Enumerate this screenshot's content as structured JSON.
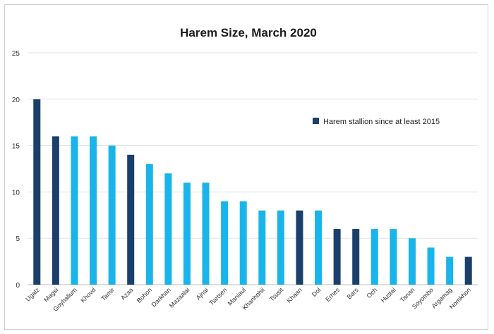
{
  "chart_data": {
    "type": "bar",
    "title": "Harem Size, March 2020",
    "xlabel": "",
    "ylabel": "",
    "ylim": [
      0,
      25
    ],
    "yticks": [
      0,
      5,
      10,
      15,
      20,
      25
    ],
    "grid": true,
    "legend_position": "right",
    "legend": [
      {
        "label": "Harem stallion since at least  2015",
        "color": "#1b3f6b"
      }
    ],
    "colors": {
      "long_term": "#1b3f6b",
      "other": "#19b5ea"
    },
    "categories": [
      "Ugalz",
      "Magsi",
      "Goyhalium",
      "Khovd",
      "Tamir",
      "Azaa",
      "Bohon",
      "Darkhan",
      "Mazaalai",
      "Ajnai",
      "Tsetsen",
      "Maniaul",
      "Khanhohii",
      "Tsusit",
      "Khaan",
      "Dol",
      "Erhes",
      "Bars",
      "Och",
      "Hustai",
      "Tanan",
      "Soyombo",
      "Argamag",
      "Nomkhon"
    ],
    "values": [
      20,
      16,
      16,
      16,
      15,
      14,
      13,
      12,
      11,
      11,
      9,
      9,
      8,
      8,
      8,
      8,
      6,
      6,
      6,
      6,
      5,
      4,
      3,
      3
    ],
    "long_term": [
      true,
      true,
      false,
      false,
      false,
      true,
      false,
      false,
      false,
      false,
      false,
      false,
      false,
      false,
      true,
      false,
      true,
      true,
      false,
      false,
      false,
      false,
      false,
      true
    ]
  }
}
